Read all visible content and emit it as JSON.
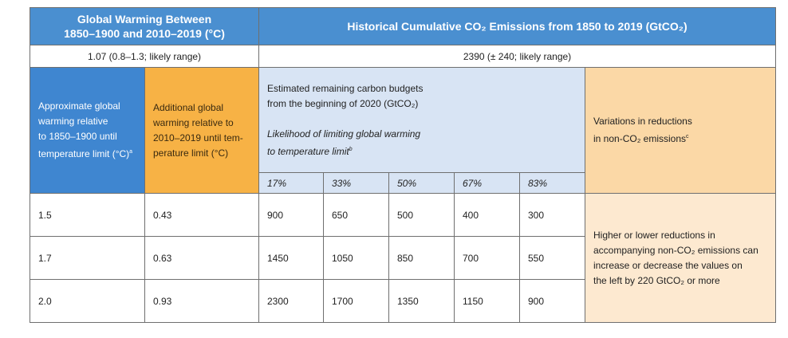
{
  "headers": {
    "warming_line1": "Global Warming Between",
    "warming_line2": "1850–1900 and 2010–2019 (°C)",
    "emissions": "Historical Cumulative CO₂ Emissions from 1850 to 2019 (GtCO₂)"
  },
  "subheaders": {
    "warming": "1.07 (0.8–1.3; likely range)",
    "emissions": "2390 (± 240; likely range)"
  },
  "columns": {
    "approx_line1": "Approximate global",
    "approx_line2": "warming relative",
    "approx_line3": "to 1850–1900 until",
    "approx_line4": "temperature limit (°C)",
    "approx_note": "a",
    "additional_line1": "Additional global",
    "additional_line2": "warming relative to",
    "additional_line3": "2010–2019 until tem-",
    "additional_line4": "perature limit (°C)",
    "budget_line1": "Estimated remaining carbon budgets",
    "budget_line2": "from the beginning of 2020 (GtCO₂)",
    "likelihood_line1": "Likelihood of limiting global warming",
    "likelihood_line2": "to temperature limit",
    "likelihood_note": "b",
    "variations_line1": "Variations in reductions",
    "variations_line2": "in non-CO₂ emissions",
    "variations_note": "c"
  },
  "percentiles": [
    "17%",
    "33%",
    "50%",
    "67%",
    "83%"
  ],
  "rows": [
    {
      "approx": "1.5",
      "additional": "0.43",
      "values": [
        "900",
        "650",
        "500",
        "400",
        "300"
      ]
    },
    {
      "approx": "1.7",
      "additional": "0.63",
      "values": [
        "1450",
        "1050",
        "850",
        "700",
        "550"
      ]
    },
    {
      "approx": "2.0",
      "additional": "0.93",
      "values": [
        "2300",
        "1700",
        "1350",
        "1150",
        "900"
      ]
    }
  ],
  "note": {
    "line1": "Higher or lower reductions in",
    "line2": "accompanying non-CO₂ emissions can",
    "line3": "increase or decrease the values on",
    "line4": "the left by 220 GtCO₂ or more"
  }
}
